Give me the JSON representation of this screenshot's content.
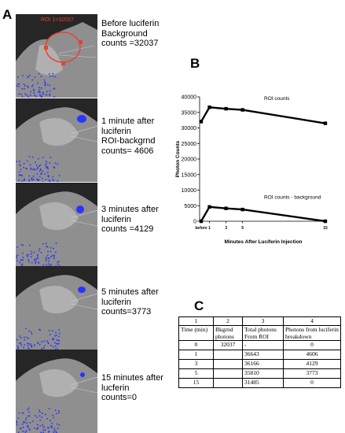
{
  "panels": {
    "a": "A",
    "b": "B",
    "c": "C"
  },
  "images": [
    {
      "roi_label": "ROI 1=32037",
      "caption": [
        "Before luciferin",
        "Background",
        "counts =32037"
      ]
    },
    {
      "caption": [
        "1 minute after",
        "luciferin",
        "ROI-backgrnd",
        "counts= 4606"
      ]
    },
    {
      "caption": [
        "3 minutes after",
        "luciferin",
        "counts =4129"
      ]
    },
    {
      "caption": [
        "5 minutes after",
        "luciferin",
        "counts=3773"
      ]
    },
    {
      "caption": [
        "15 minutes after",
        "lucferin",
        "counts=0"
      ]
    }
  ],
  "colors": {
    "signal": "#2a34ff",
    "roi": "#e8422b",
    "image_bg": "#262626",
    "mouse": "#9a9a9a"
  },
  "chart_data": {
    "type": "line",
    "ylabel": "Photon Counts",
    "xlabel": "Minutes After Luciferin Injection",
    "x_tick_labels": [
      "before",
      "1",
      "3",
      "5",
      "15"
    ],
    "x": [
      0,
      1,
      3,
      5,
      15
    ],
    "ylim": [
      0,
      40000
    ],
    "y_ticks": [
      0,
      5000,
      10000,
      15000,
      20000,
      25000,
      30000,
      35000,
      40000
    ],
    "grid": false,
    "series": [
      {
        "name": "ROI counts",
        "values": [
          32037,
          36643,
          36166,
          35810,
          31485
        ]
      },
      {
        "name": "ROI counts - background",
        "values": [
          0,
          4606,
          4129,
          3773,
          0
        ]
      }
    ]
  },
  "table": {
    "header_numbers": [
      "1",
      "2",
      "3",
      "4"
    ],
    "header_labels": [
      [
        "Time (min)"
      ],
      [
        "Bkgrnd",
        "photons"
      ],
      [
        "Total photons",
        "From ROI"
      ],
      [
        "Photons from luciferin",
        "breakdown"
      ]
    ],
    "rows": [
      [
        "0",
        "32037",
        "-",
        "0"
      ],
      [
        "1",
        "",
        "36643",
        "4606"
      ],
      [
        "3",
        "",
        "36166",
        "4129"
      ],
      [
        "5",
        "",
        "35810",
        "3773"
      ],
      [
        "15",
        "",
        "31485",
        "0"
      ]
    ]
  }
}
